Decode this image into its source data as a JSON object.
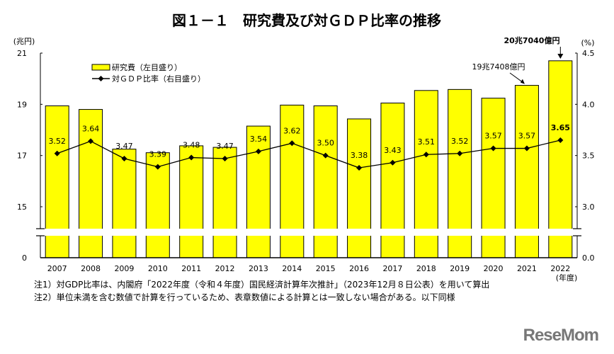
{
  "chart_data": {
    "type": "bar+line",
    "title": "図１－１　研究費及び対ＧＤＰ比率の推移",
    "left_axis_unit": "(兆円)",
    "right_axis_unit": "(%)",
    "x_unit": "(年度)",
    "categories": [
      "2007",
      "2008",
      "2009",
      "2010",
      "2011",
      "2012",
      "2013",
      "2014",
      "2015",
      "2016",
      "2017",
      "2018",
      "2019",
      "2020",
      "2021",
      "2022"
    ],
    "series": [
      {
        "name": "研究費（左目盛り）",
        "type": "bar",
        "axis": "left",
        "color": "#ffff00",
        "values": [
          18.94,
          18.8,
          17.25,
          17.11,
          17.38,
          17.32,
          18.15,
          18.97,
          18.94,
          18.43,
          19.05,
          19.54,
          19.58,
          19.24,
          19.74,
          20.7
        ]
      },
      {
        "name": "対ＧＤＰ比率（右目盛り）",
        "type": "line",
        "axis": "right",
        "color": "#000000",
        "values": [
          3.52,
          3.64,
          3.47,
          3.39,
          3.48,
          3.47,
          3.54,
          3.62,
          3.5,
          3.38,
          3.43,
          3.51,
          3.52,
          3.57,
          3.57,
          3.65
        ],
        "labels": [
          "3.52",
          "3.64",
          "3.47",
          "3.39",
          "3.48",
          "3.47",
          "3.54",
          "3.62",
          "3.50",
          "3.38",
          "3.43",
          "3.51",
          "3.52",
          "3.57",
          "3.57",
          "3.65"
        ]
      }
    ],
    "left_ticks": [
      "21",
      "19",
      "17",
      "15",
      "0"
    ],
    "right_ticks": [
      "4.5",
      "4.0",
      "3.5",
      "3.0",
      "0.0"
    ],
    "left_axis_range": [
      15,
      21
    ],
    "right_axis_range": [
      3.0,
      4.5
    ],
    "axis_break": true,
    "annotations": [
      {
        "category": "2021",
        "text": "19兆7408億円"
      },
      {
        "category": "2022",
        "text": "20兆7040億円"
      }
    ],
    "legend_placement": "top-left"
  },
  "notes": [
    "注1）対GDP比率は、内閣府「2022年度（令和４年度）国民経済計算年次推計」（2023年12月８日公表）を用いて算出",
    "注2）単位未満を含む数値で計算を行っているため、表章数値による計算とは一致しない場合がある。以下同様"
  ],
  "logo": "ReseMom"
}
